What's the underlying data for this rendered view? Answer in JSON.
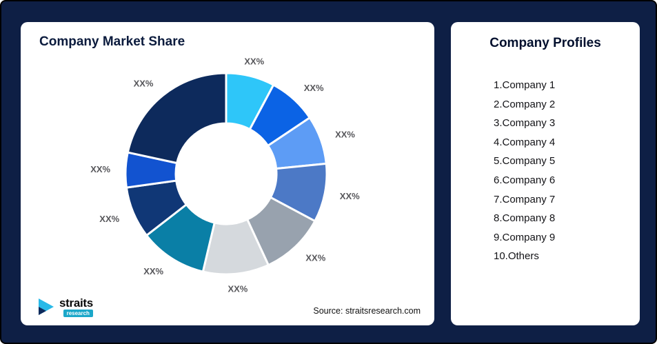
{
  "page": {
    "background": "#0E1F45"
  },
  "left_panel": {
    "title": "Company Market Share",
    "source": "Source: straitsresearch.com",
    "logo": {
      "brand": "straits",
      "brand_sub": "research"
    }
  },
  "right_panel": {
    "title": "Company Profiles",
    "items": [
      "1.Company 1",
      "2.Company 2",
      "3.Company 3",
      "4.Company 4",
      "5.Company 5",
      "6.Company 6",
      "7.Company 7",
      "8.Company 8",
      "9.Company 9",
      "10.Others"
    ]
  },
  "chart_data": {
    "type": "pie",
    "donut": true,
    "title": "Company Market Share",
    "start_angle_deg": 0,
    "direction": "clockwise",
    "label_color": "#57575B",
    "note": "All slice data labels are masked as XX% in the source image; values are angular estimates in percent.",
    "segments": [
      {
        "name": "Company 1",
        "label": "XX%",
        "value": 7.8,
        "color": "#2EC6F9"
      },
      {
        "name": "Company 2",
        "label": "XX%",
        "value": 7.8,
        "color": "#0B63E5"
      },
      {
        "name": "Company 3",
        "label": "XX%",
        "value": 7.8,
        "color": "#5D9CF5"
      },
      {
        "name": "Company 4",
        "label": "XX%",
        "value": 9.4,
        "color": "#4C79C6"
      },
      {
        "name": "Company 5",
        "label": "XX%",
        "value": 10.3,
        "color": "#98A2AE"
      },
      {
        "name": "Company 6",
        "label": "XX%",
        "value": 10.6,
        "color": "#D5D9DD"
      },
      {
        "name": "Company 7",
        "label": "XX%",
        "value": 10.8,
        "color": "#0A7FA6"
      },
      {
        "name": "Company 8",
        "label": "XX%",
        "value": 8.3,
        "color": "#103776"
      },
      {
        "name": "Company 9",
        "label": "XX%",
        "value": 5.6,
        "color": "#1253D0"
      },
      {
        "name": "Others",
        "label": "XX%",
        "value": 21.6,
        "color": "#0D2A5C"
      }
    ]
  }
}
